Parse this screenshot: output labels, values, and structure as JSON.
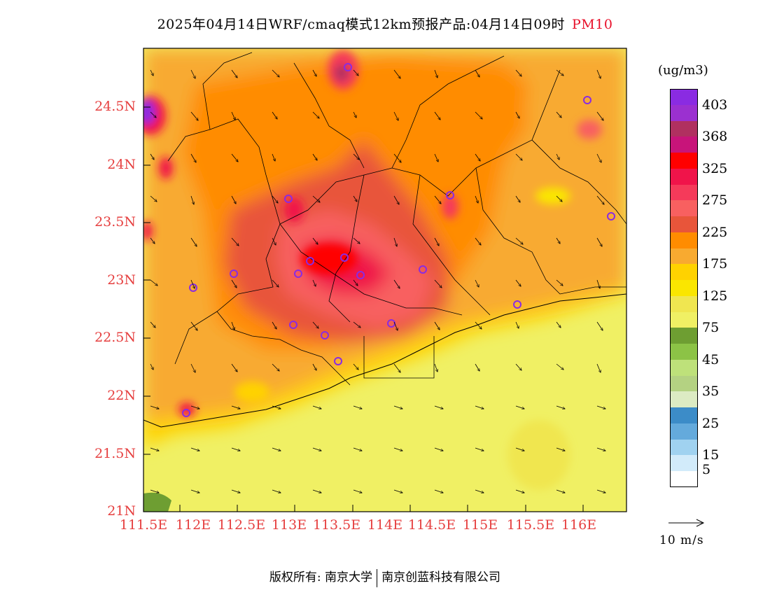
{
  "title": {
    "text": "2025年04月14日WRF/cmaq模式12km预报产品:04月14日09时",
    "pollutant": "PM10"
  },
  "lat_labels": [
    "24.5N",
    "24N",
    "23.5N",
    "23N",
    "22.5N",
    "22N",
    "21.5N",
    "21N"
  ],
  "lon_labels": [
    "111.5E",
    "112E",
    "112.5E",
    "113E",
    "113.5E",
    "114E",
    "114.5E",
    "115E",
    "115.5E",
    "116E"
  ],
  "legend": {
    "unit": "(ug/m3)",
    "colors": [
      "#8a2be2",
      "#9b30d0",
      "#b03060",
      "#c8147a",
      "#ff0000",
      "#f0144a",
      "#f53a5a",
      "#f86060",
      "#e8553a",
      "#ff8c00",
      "#f8aa30",
      "#ffd200",
      "#fae600",
      "#f0e650",
      "#f0f064",
      "#6e9e32",
      "#8cc346",
      "#bee17a",
      "#b4d282",
      "#dcebc3",
      "#3c8cc8",
      "#64aadc",
      "#a0d2f0",
      "#d2ebfa",
      "#ffffff"
    ],
    "ticks": [
      "403",
      "368",
      "325",
      "275",
      "225",
      "175",
      "125",
      "75",
      "45",
      "35",
      "25",
      "15",
      "5"
    ]
  },
  "wind_scale": "10 m/s",
  "footer": {
    "left": "版权所有: 南京大学",
    "right": "南京创蓝科技有限公司"
  }
}
